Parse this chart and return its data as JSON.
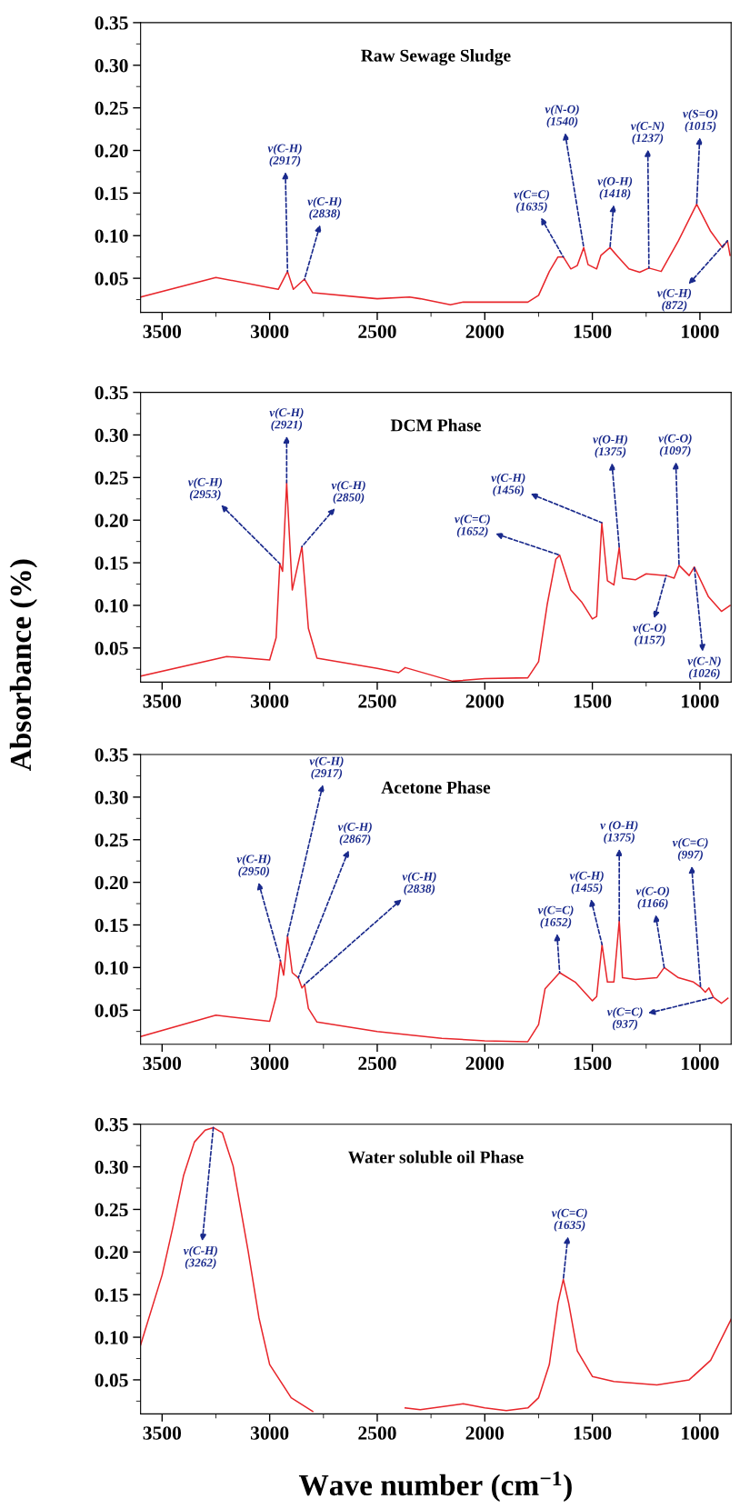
{
  "chart_data": [
    {
      "type": "line",
      "title": "Raw Sewage Sludge",
      "x": [
        3600,
        3250,
        3000,
        2960,
        2917,
        2890,
        2838,
        2800,
        2500,
        2350,
        2300,
        2160,
        2100,
        2000,
        1800,
        1750,
        1700,
        1660,
        1635,
        1600,
        1570,
        1540,
        1520,
        1480,
        1460,
        1418,
        1380,
        1330,
        1280,
        1237,
        1180,
        1100,
        1015,
        950,
        895,
        872,
        860
      ],
      "series": [
        {
          "color": "#e8262b",
          "values": [
            0.028,
            0.051,
            0.039,
            0.037,
            0.058,
            0.037,
            0.049,
            0.033,
            0.026,
            0.028,
            0.026,
            0.019,
            0.022,
            0.022,
            0.022,
            0.03,
            0.058,
            0.075,
            0.075,
            0.061,
            0.065,
            0.086,
            0.066,
            0.061,
            0.077,
            0.086,
            0.075,
            0.061,
            0.057,
            0.062,
            0.058,
            0.094,
            0.137,
            0.105,
            0.086,
            0.094,
            0.077
          ]
        }
      ],
      "xlim": [
        3600,
        855
      ],
      "ylim": [
        0.01,
        0.35
      ],
      "xticks": [
        3500,
        3000,
        2500,
        2000,
        1500,
        1000
      ],
      "yticks": [
        0.05,
        {
          "value": 0.1,
          "label": "0.10"
        },
        0.15,
        {
          "value": 0.2,
          "label": "0.20"
        },
        0.25,
        {
          "value": 0.3,
          "label": "0.30"
        },
        0.35
      ],
      "annotations": [
        {
          "text": "v(C-H)\n(2917)",
          "x": 2917,
          "y": 0.058
        },
        {
          "text": "v(C-H)\n(2838)",
          "x": 2838,
          "y": 0.049
        },
        {
          "text": "v(C=C)\n(1635)",
          "x": 1635,
          "y": 0.075
        },
        {
          "text": "v(N-O)\n(1540)",
          "x": 1540,
          "y": 0.086
        },
        {
          "text": "v(O-H)\n(1418)",
          "x": 1418,
          "y": 0.086
        },
        {
          "text": "v(C-N)\n(1237)",
          "x": 1237,
          "y": 0.062
        },
        {
          "text": "v(S=O)\n(1015)",
          "x": 1015,
          "y": 0.137
        },
        {
          "text": "v(C-H)\n(872)",
          "x": 872,
          "y": 0.094
        }
      ]
    },
    {
      "type": "line",
      "title": "DCM Phase",
      "ylabel": "Absorbance (%)",
      "x": [
        3600,
        3200,
        3000,
        2970,
        2953,
        2940,
        2921,
        2895,
        2850,
        2820,
        2780,
        2500,
        2400,
        2370,
        2150,
        2000,
        1800,
        1750,
        1710,
        1670,
        1652,
        1600,
        1550,
        1500,
        1480,
        1456,
        1430,
        1400,
        1375,
        1360,
        1300,
        1250,
        1157,
        1120,
        1097,
        1050,
        1026,
        960,
        900,
        860
      ],
      "series": [
        {
          "color": "#e8262b",
          "values": [
            0.017,
            0.04,
            0.036,
            0.062,
            0.149,
            0.14,
            0.244,
            0.118,
            0.169,
            0.073,
            0.038,
            0.026,
            0.021,
            0.027,
            0.011,
            0.014,
            0.015,
            0.034,
            0.101,
            0.154,
            0.159,
            0.118,
            0.104,
            0.084,
            0.087,
            0.197,
            0.129,
            0.124,
            0.168,
            0.132,
            0.13,
            0.137,
            0.135,
            0.132,
            0.147,
            0.135,
            0.145,
            0.11,
            0.093,
            0.1
          ]
        }
      ],
      "xlim": [
        3600,
        855
      ],
      "ylim": [
        0.01,
        0.35
      ],
      "xticks": [
        3500,
        3000,
        2500,
        2000,
        1500,
        1000
      ],
      "yticks": [
        0.05,
        {
          "value": 0.1,
          "label": "0.10"
        },
        0.15,
        {
          "value": 0.2,
          "label": "0.20"
        },
        0.25,
        {
          "value": 0.3,
          "label": "0.30"
        },
        0.35
      ],
      "annotations": [
        {
          "text": "v(C-H)\n(2953)",
          "x": 2953,
          "y": 0.149
        },
        {
          "text": "v(C-H)\n(2921)",
          "x": 2921,
          "y": 0.244
        },
        {
          "text": "v(C-H)\n(2850)",
          "x": 2850,
          "y": 0.169
        },
        {
          "text": "v(C=C)\n(1652)",
          "x": 1652,
          "y": 0.159
        },
        {
          "text": "v(C-H)\n(1456)",
          "x": 1456,
          "y": 0.197
        },
        {
          "text": "v(O-H)\n(1375)",
          "x": 1375,
          "y": 0.168
        },
        {
          "text": "v(C-O)\n(1157)",
          "x": 1157,
          "y": 0.135
        },
        {
          "text": "v(C-O)\n(1097)",
          "x": 1097,
          "y": 0.147
        },
        {
          "text": "v(C-N)\n(1026)",
          "x": 1026,
          "y": 0.145
        }
      ]
    },
    {
      "type": "line",
      "title": "Acetone Phase",
      "x": [
        3600,
        3250,
        3000,
        2970,
        2950,
        2935,
        2917,
        2895,
        2867,
        2850,
        2838,
        2820,
        2780,
        2500,
        2200,
        2000,
        1800,
        1750,
        1720,
        1652,
        1580,
        1500,
        1480,
        1455,
        1430,
        1400,
        1375,
        1360,
        1300,
        1200,
        1166,
        1100,
        1030,
        997,
        975,
        958,
        937,
        900,
        870
      ],
      "series": [
        {
          "color": "#e8262b",
          "values": [
            0.019,
            0.044,
            0.037,
            0.066,
            0.108,
            0.091,
            0.137,
            0.094,
            0.088,
            0.076,
            0.08,
            0.052,
            0.036,
            0.025,
            0.017,
            0.014,
            0.013,
            0.033,
            0.075,
            0.094,
            0.083,
            0.061,
            0.066,
            0.127,
            0.083,
            0.083,
            0.155,
            0.088,
            0.086,
            0.088,
            0.1,
            0.088,
            0.083,
            0.077,
            0.071,
            0.076,
            0.065,
            0.058,
            0.064
          ]
        }
      ],
      "xlim": [
        3600,
        855
      ],
      "ylim": [
        0.01,
        0.35
      ],
      "xticks": [
        3500,
        3000,
        2500,
        2000,
        1500,
        1000
      ],
      "yticks": [
        0.05,
        {
          "value": 0.1,
          "label": "0.10"
        },
        0.15,
        {
          "value": 0.2,
          "label": "0.20"
        },
        0.25,
        {
          "value": 0.3,
          "label": "0.30"
        },
        0.35
      ],
      "annotations": [
        {
          "text": "v(C-H)\n(2950)",
          "x": 2950,
          "y": 0.108
        },
        {
          "text": "v(C-H)\n(2917)",
          "x": 2917,
          "y": 0.137
        },
        {
          "text": "v(C-H)\n(2867)",
          "x": 2867,
          "y": 0.088
        },
        {
          "text": "v(C-H)\n(2838)",
          "x": 2838,
          "y": 0.08
        },
        {
          "text": "v(C=C)\n(1652)",
          "x": 1652,
          "y": 0.094
        },
        {
          "text": "v(C-H)\n(1455)",
          "x": 1455,
          "y": 0.127
        },
        {
          "text": "v (O-H)\n(1375)",
          "x": 1375,
          "y": 0.155
        },
        {
          "text": "v(C-O)\n(1166)",
          "x": 1166,
          "y": 0.1
        },
        {
          "text": "v(C=C)\n(997)",
          "x": 997,
          "y": 0.077
        },
        {
          "text": "v(C=C)\n(937)",
          "x": 937,
          "y": 0.065
        }
      ]
    },
    {
      "type": "line",
      "title": "Water soluble oil Phase",
      "xlabel": "Wave number (cm$^{−1}$)",
      "x": [
        3600,
        3500,
        3450,
        3400,
        3350,
        3300,
        3262,
        3220,
        3170,
        3100,
        3050,
        3000,
        2900,
        2800,
        2750,
        2600,
        2390,
        2370,
        2300,
        2100,
        2000,
        1900,
        1800,
        1750,
        1700,
        1660,
        1635,
        1610,
        1570,
        1500,
        1400,
        1200,
        1050,
        950,
        855
      ],
      "series": [
        {
          "color": "#e8262b",
          "values": [
            0.091,
            0.173,
            0.229,
            0.29,
            0.329,
            0.343,
            0.346,
            0.34,
            0.301,
            0.201,
            0.123,
            0.068,
            0.029,
            0.013,
            null,
            null,
            null,
            0.017,
            0.015,
            0.022,
            0.017,
            0.014,
            0.017,
            0.029,
            0.068,
            0.14,
            0.168,
            0.14,
            0.084,
            0.054,
            0.048,
            0.044,
            0.05,
            0.073,
            0.121
          ]
        }
      ],
      "xlim": [
        3600,
        855
      ],
      "ylim": [
        0.01,
        0.35
      ],
      "xticks": [
        3500,
        3000,
        2500,
        2000,
        1500,
        1000
      ],
      "yticks": [
        0.05,
        {
          "value": 0.1,
          "label": "0.10"
        },
        0.15,
        {
          "value": 0.2,
          "label": "0.20"
        },
        0.25,
        {
          "value": 0.3,
          "label": "0.30"
        },
        0.35
      ],
      "annotations": [
        {
          "text": "v(C-H)\n(3262)",
          "x": 3262,
          "y": 0.346
        },
        {
          "text": "v(C=C)\n(1635)",
          "x": 1635,
          "y": 0.168
        }
      ]
    }
  ]
}
